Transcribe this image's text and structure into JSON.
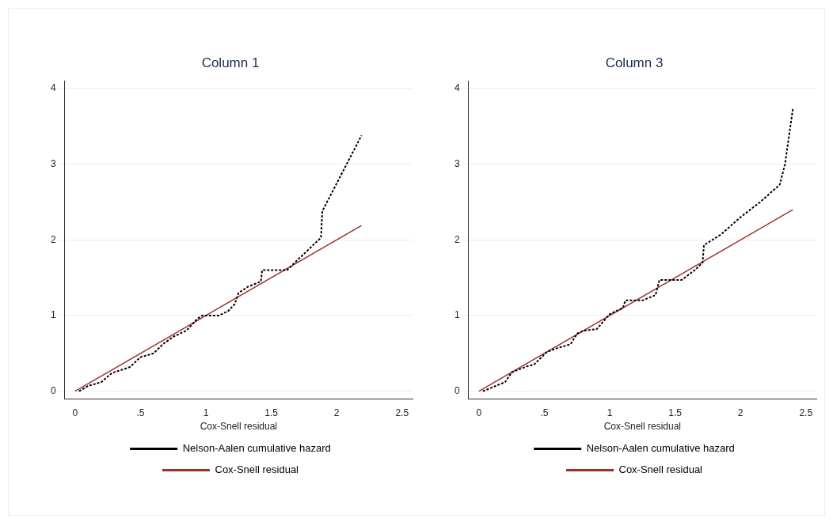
{
  "chart_data": [
    {
      "type": "line",
      "title": "Column 1",
      "xlabel": "Cox-Snell residual",
      "xlim": [
        -0.08,
        2.58
      ],
      "ylim": [
        -0.1,
        4.1
      ],
      "xticks": [
        0,
        {
          "value": 0.5,
          "label": ".5"
        },
        1,
        1.5,
        2,
        2.5
      ],
      "yticks": [
        0,
        1,
        2,
        3,
        4
      ],
      "grid": "y",
      "legend": "bottom",
      "marker": "none",
      "series": [
        {
          "name": "Nelson-Aalen cumulative hazard",
          "color": "#000000",
          "line_style": "dotted",
          "x": [
            0.03,
            0.1,
            0.2,
            0.28,
            0.37,
            0.42,
            0.5,
            0.6,
            0.67,
            0.75,
            0.85,
            0.93,
            0.97,
            1.1,
            1.17,
            1.22,
            1.25,
            1.32,
            1.42,
            1.43,
            1.62,
            1.68,
            1.88,
            1.89,
            2.19
          ],
          "values": [
            0,
            0.07,
            0.12,
            0.24,
            0.29,
            0.32,
            0.45,
            0.5,
            0.62,
            0.72,
            0.8,
            0.95,
            1.0,
            1.0,
            1.06,
            1.15,
            1.3,
            1.38,
            1.45,
            1.6,
            1.6,
            1.7,
            2.03,
            2.38,
            3.38
          ]
        },
        {
          "name": "Cox-Snell residual",
          "color": "#a03030",
          "line_style": "solid",
          "x": [
            0,
            2.19
          ],
          "values": [
            0,
            2.19
          ]
        }
      ]
    },
    {
      "type": "line",
      "title": "Column 3",
      "xlabel": "Cox-Snell residual",
      "xlim": [
        -0.08,
        2.58
      ],
      "ylim": [
        -0.1,
        4.1
      ],
      "xticks": [
        0,
        {
          "value": 0.5,
          "label": ".5"
        },
        1,
        1.5,
        2,
        2.5
      ],
      "yticks": [
        0,
        1,
        2,
        3,
        4
      ],
      "grid": "y",
      "legend": "bottom",
      "marker": "none",
      "series": [
        {
          "name": "Nelson-Aalen cumulative hazard",
          "color": "#000000",
          "line_style": "dotted",
          "x": [
            0.03,
            0.1,
            0.2,
            0.25,
            0.37,
            0.42,
            0.52,
            0.6,
            0.7,
            0.75,
            0.8,
            0.9,
            0.94,
            1.0,
            1.1,
            1.12,
            1.25,
            1.35,
            1.38,
            1.55,
            1.65,
            1.71,
            1.72,
            1.85,
            2.0,
            2.15,
            2.3,
            2.34,
            2.4
          ],
          "values": [
            0,
            0.05,
            0.12,
            0.25,
            0.33,
            0.35,
            0.52,
            0.57,
            0.62,
            0.76,
            0.8,
            0.82,
            0.9,
            1.02,
            1.1,
            1.2,
            1.2,
            1.27,
            1.47,
            1.47,
            1.6,
            1.7,
            1.93,
            2.07,
            2.3,
            2.5,
            2.73,
            3.0,
            3.73
          ]
        },
        {
          "name": "Cox-Snell residual",
          "color": "#a03030",
          "line_style": "solid",
          "x": [
            0,
            2.4
          ],
          "values": [
            0,
            2.4
          ]
        }
      ]
    }
  ]
}
